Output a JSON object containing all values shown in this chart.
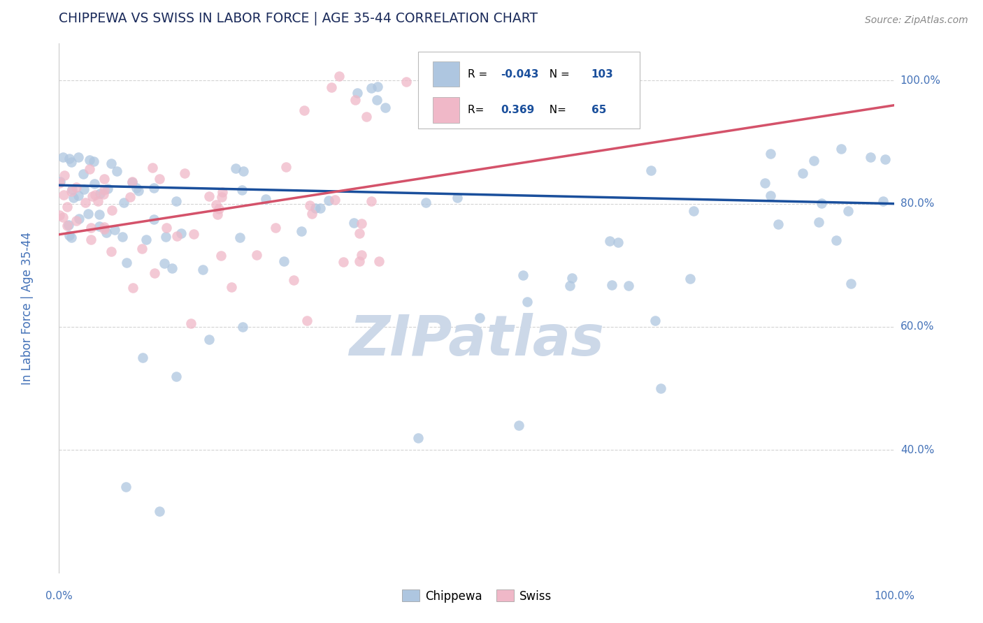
{
  "title": "CHIPPEWA VS SWISS IN LABOR FORCE | AGE 35-44 CORRELATION CHART",
  "ylabel": "In Labor Force | Age 35-44",
  "source_text": "Source: ZipAtlas.com",
  "legend_label1": "Chippewa",
  "legend_label2": "Swiss",
  "r1": -0.043,
  "n1": 103,
  "r2": 0.369,
  "n2": 65,
  "color_chippewa": "#aec6e0",
  "color_swiss": "#f0b8c8",
  "color_line_chippewa": "#1a4f9c",
  "color_line_swiss": "#d4526a",
  "watermark_color": "#ccd8e8",
  "background_color": "#ffffff",
  "grid_color": "#c8c8c8",
  "title_color": "#1a2a5a",
  "axis_label_color": "#4472b8",
  "xlim": [
    0.0,
    1.0
  ],
  "ylim": [
    0.2,
    1.06
  ],
  "yticks": [
    0.4,
    0.6,
    0.8,
    1.0
  ],
  "ytick_labels": [
    "40.0%",
    "60.0%",
    "80.0%",
    "100.0%"
  ],
  "xtick_labels": [
    "0.0%",
    "100.0%"
  ],
  "figsize": [
    14.06,
    8.92
  ],
  "dpi": 100,
  "chip_line_start_y": 0.83,
  "chip_line_end_y": 0.8,
  "swiss_line_start_y": 0.75,
  "swiss_line_end_y": 0.96
}
